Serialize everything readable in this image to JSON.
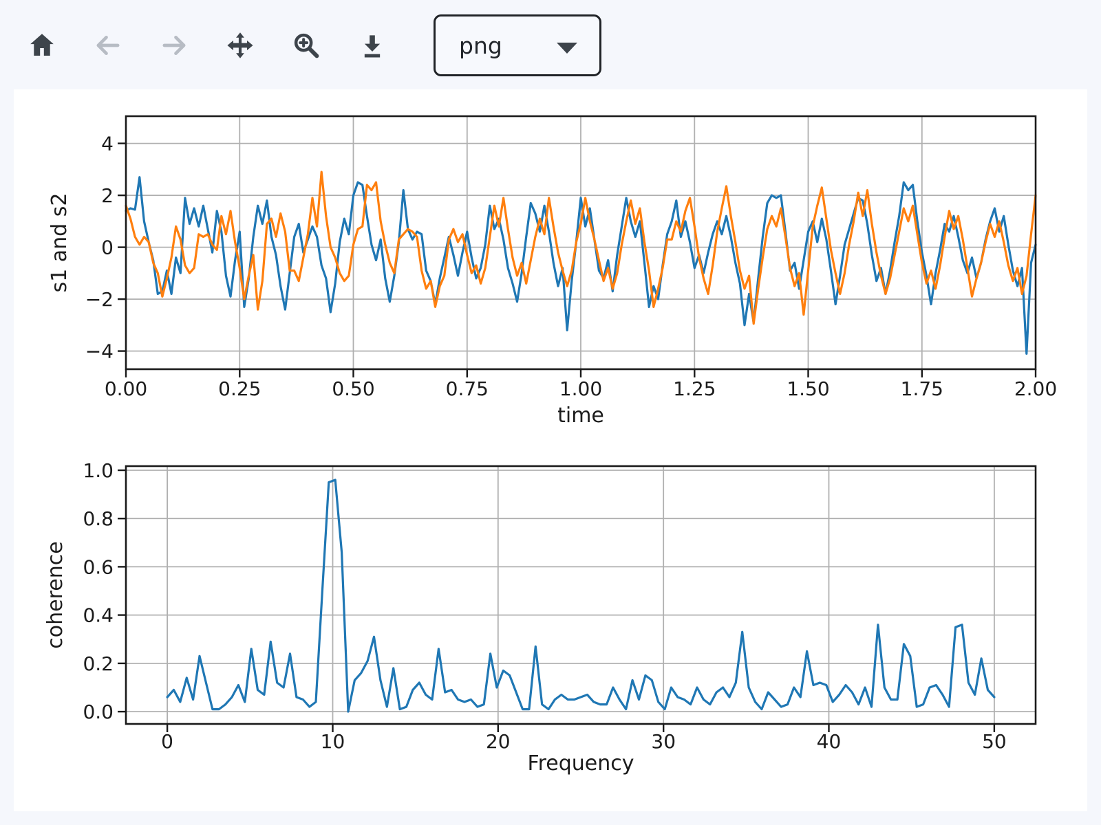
{
  "toolbar": {
    "buttons": [
      {
        "icon": "home-icon",
        "enabled": true
      },
      {
        "icon": "arrow-left-icon",
        "enabled": false
      },
      {
        "icon": "arrow-right-icon",
        "enabled": false
      },
      {
        "icon": "pan-arrows-icon",
        "enabled": true
      },
      {
        "icon": "zoom-in-icon",
        "enabled": true
      },
      {
        "icon": "download-icon",
        "enabled": true
      }
    ],
    "format_select": {
      "value": "png"
    }
  },
  "colors": {
    "page_background": "#f5f7fc",
    "figure_background": "#ffffff",
    "series_blue": "#1f77b4",
    "series_orange": "#ff7f0e",
    "grid": "#b0b0b0",
    "icon_enabled": "#3d444b",
    "icon_disabled": "#b7bcc4"
  },
  "chart_data": [
    {
      "type": "line",
      "xlabel": "time",
      "ylabel": "s1 and s2",
      "grid": true,
      "legend": null,
      "xlim": [
        0,
        2
      ],
      "ylim": [
        -4.7,
        5.05
      ],
      "xticks": {
        "values": [
          0,
          0.25,
          0.5,
          0.75,
          1.0,
          1.25,
          1.5,
          1.75,
          2.0
        ],
        "labels": [
          "0.00",
          "0.25",
          "0.50",
          "0.75",
          "1.00",
          "1.25",
          "1.50",
          "1.75",
          "2.00"
        ]
      },
      "yticks": {
        "values": [
          -4,
          -2,
          0,
          2,
          4
        ],
        "labels": [
          "−4",
          "−2",
          "0",
          "2",
          "4"
        ]
      },
      "x": {
        "start": 0,
        "step": 0.01,
        "n": 201
      },
      "series": [
        {
          "name": "s1",
          "color": "#1f77b4",
          "values": [
            1.4,
            1.5,
            1.45,
            2.7,
            1.0,
            0.2,
            -0.5,
            -1.8,
            -1.7,
            -0.9,
            -1.8,
            -0.4,
            -1.0,
            1.9,
            0.9,
            1.5,
            0.8,
            1.6,
            0.7,
            -0.2,
            1.4,
            0.6,
            -1.1,
            -1.9,
            -0.5,
            0.6,
            -2.3,
            -1.2,
            0.4,
            1.6,
            0.9,
            1.8,
            0.4,
            -0.3,
            -1.5,
            -2.4,
            -1.0,
            0.4,
            0.9,
            -0.2,
            0.3,
            0.8,
            0.4,
            -0.7,
            -1.2,
            -2.5,
            -1.4,
            0.2,
            1.1,
            0.5,
            2.0,
            2.5,
            2.4,
            1.2,
            0.1,
            -0.5,
            0.3,
            -1.2,
            -2.1,
            -1.1,
            0.2,
            2.2,
            0.7,
            0.3,
            0.6,
            0.5,
            -0.9,
            -1.3,
            -2.2,
            -1.2,
            -0.4,
            0.4,
            -0.3,
            -1.1,
            -0.2,
            0.6,
            -0.4,
            -1.2,
            -0.8,
            0.1,
            1.6,
            0.7,
            1.1,
            0.3,
            -0.8,
            -1.4,
            -2.1,
            -1.0,
            0.4,
            1.7,
            1.3,
            0.6,
            1.6,
            0.6,
            -0.6,
            -1.5,
            -0.8,
            -3.2,
            -1.3,
            0.2,
            1.9,
            0.8,
            1.5,
            0.3,
            -0.9,
            -1.2,
            -0.5,
            -1.7,
            -0.3,
            0.8,
            1.9,
            1.0,
            0.4,
            1.0,
            -0.6,
            -2.3,
            -1.5,
            -2.0,
            -0.7,
            0.5,
            1.0,
            1.8,
            0.4,
            1.0,
            0.2,
            -0.8,
            -0.3,
            -1.0,
            -0.2,
            0.5,
            1.0,
            0.5,
            1.2,
            0.4,
            -0.6,
            -1.4,
            -3.0,
            -1.8,
            -2.9,
            -1.2,
            0.4,
            1.7,
            2.0,
            1.9,
            2.0,
            0.6,
            -0.9,
            -0.6,
            -1.6,
            -0.5,
            0.6,
            1.0,
            0.2,
            1.1,
            0.3,
            -0.9,
            -2.2,
            -1.1,
            0.1,
            0.7,
            1.3,
            1.9,
            1.8,
            0.9,
            -0.3,
            -1.3,
            -0.8,
            -1.8,
            -0.9,
            0.2,
            1.2,
            2.5,
            2.2,
            2.4,
            1.0,
            -0.2,
            -1.1,
            -2.2,
            -1.0,
            -0.1,
            0.9,
            0.6,
            1.2,
            0.4,
            -0.5,
            -1.0,
            -0.4,
            -1.2,
            -0.6,
            0.3,
            1.0,
            1.5,
            0.6,
            1.2,
            0.1,
            -0.9,
            -1.5,
            -0.8,
            -4.1,
            -0.6,
            0.1
          ]
        },
        {
          "name": "s2",
          "color": "#ff7f0e",
          "values": [
            1.6,
            1.1,
            0.4,
            0.1,
            0.4,
            0.2,
            -0.6,
            -1.0,
            -1.9,
            -1.2,
            -0.4,
            0.8,
            0.3,
            -0.7,
            -1.0,
            -0.8,
            0.5,
            0.4,
            0.5,
            0.1,
            -0.1,
            1.2,
            0.5,
            1.4,
            0.2,
            -0.8,
            -2.0,
            -1.1,
            -0.3,
            -2.4,
            -1.3,
            0.9,
            1.1,
            0.4,
            1.3,
            0.6,
            -0.9,
            -0.9,
            -1.3,
            -0.4,
            0.5,
            1.9,
            0.8,
            2.9,
            1.2,
            0.0,
            -0.4,
            -1.0,
            -1.3,
            -1.1,
            0.1,
            0.7,
            0.8,
            2.4,
            2.2,
            2.5,
            1.0,
            0.1,
            -0.6,
            -1.0,
            0.3,
            0.5,
            0.7,
            0.6,
            0.4,
            -0.9,
            -1.6,
            -1.3,
            -2.3,
            -1.5,
            -1.1,
            0.3,
            0.7,
            0.2,
            0.5,
            -0.3,
            -1.0,
            -0.7,
            -1.4,
            -0.8,
            0.4,
            1.6,
            0.8,
            1.9,
            0.7,
            -0.4,
            -1.1,
            -0.6,
            -1.4,
            -0.5,
            0.4,
            1.1,
            0.5,
            1.9,
            0.8,
            -0.2,
            -0.9,
            -1.5,
            -0.9,
            0.2,
            0.9,
            1.9,
            1.0,
            0.3,
            -0.5,
            -1.3,
            -0.8,
            -1.6,
            -1.0,
            0.1,
            1.0,
            1.8,
            0.9,
            1.5,
            0.2,
            -0.9,
            -2.3,
            -1.6,
            -0.8,
            0.3,
            0.3,
            1.0,
            0.6,
            1.4,
            1.9,
            0.8,
            -0.4,
            -1.2,
            -1.8,
            -0.7,
            0.6,
            1.5,
            2.35,
            1.2,
            0.2,
            -0.9,
            -1.6,
            -1.1,
            -2.95,
            -1.6,
            -0.4,
            0.7,
            1.2,
            0.8,
            1.5,
            0.4,
            -0.8,
            -1.5,
            -1.0,
            -2.6,
            -0.9,
            0.8,
            1.6,
            2.3,
            1.1,
            -0.1,
            -1.0,
            -1.8,
            -1.0,
            0.1,
            1.0,
            2.1,
            1.2,
            2.2,
            0.9,
            -0.2,
            -1.1,
            -1.8,
            -1.2,
            -0.3,
            0.6,
            1.5,
            1.0,
            1.6,
            0.5,
            -0.6,
            -1.4,
            -0.9,
            -1.6,
            -0.7,
            0.4,
            1.4,
            0.7,
            1.2,
            0.3,
            -0.8,
            -1.9,
            -1.2,
            -0.6,
            0.2,
            0.9,
            0.4,
            1.0,
            0.2,
            -0.7,
            -1.3,
            -0.8,
            -1.8,
            -1.1,
            0.5,
            2.0
          ]
        }
      ]
    },
    {
      "type": "line",
      "xlabel": "Frequency",
      "ylabel": "coherence",
      "grid": true,
      "legend": null,
      "xlim": [
        -2.5,
        52.5
      ],
      "ylim": [
        -0.051,
        1.017
      ],
      "xticks": {
        "values": [
          0,
          10,
          20,
          30,
          40,
          50
        ],
        "labels": [
          "0",
          "10",
          "20",
          "30",
          "40",
          "50"
        ]
      },
      "yticks": {
        "values": [
          0.0,
          0.2,
          0.4,
          0.6,
          0.8,
          1.0
        ],
        "labels": [
          "0.0",
          "0.2",
          "0.4",
          "0.6",
          "0.8",
          "1.0"
        ]
      },
      "x": {
        "start": 0,
        "step": 0.390625,
        "n": 129
      },
      "series": [
        {
          "name": "coherence",
          "color": "#1f77b4",
          "values": [
            0.06,
            0.09,
            0.04,
            0.14,
            0.05,
            0.23,
            0.12,
            0.01,
            0.01,
            0.03,
            0.06,
            0.11,
            0.04,
            0.26,
            0.09,
            0.07,
            0.29,
            0.12,
            0.1,
            0.24,
            0.06,
            0.05,
            0.02,
            0.04,
            0.5,
            0.95,
            0.96,
            0.66,
            0.0,
            0.13,
            0.16,
            0.21,
            0.31,
            0.13,
            0.02,
            0.18,
            0.01,
            0.02,
            0.09,
            0.12,
            0.07,
            0.05,
            0.26,
            0.08,
            0.09,
            0.05,
            0.04,
            0.05,
            0.02,
            0.03,
            0.24,
            0.1,
            0.17,
            0.15,
            0.08,
            0.01,
            0.01,
            0.27,
            0.03,
            0.01,
            0.05,
            0.07,
            0.05,
            0.05,
            0.06,
            0.07,
            0.04,
            0.03,
            0.03,
            0.1,
            0.05,
            0.01,
            0.13,
            0.05,
            0.15,
            0.13,
            0.04,
            0.01,
            0.1,
            0.06,
            0.05,
            0.03,
            0.1,
            0.05,
            0.03,
            0.08,
            0.1,
            0.06,
            0.12,
            0.33,
            0.1,
            0.04,
            0.01,
            0.08,
            0.05,
            0.02,
            0.03,
            0.1,
            0.06,
            0.25,
            0.11,
            0.12,
            0.11,
            0.04,
            0.07,
            0.11,
            0.08,
            0.03,
            0.1,
            0.02,
            0.36,
            0.1,
            0.05,
            0.05,
            0.28,
            0.23,
            0.02,
            0.03,
            0.1,
            0.11,
            0.07,
            0.02,
            0.35,
            0.36,
            0.12,
            0.07,
            0.22,
            0.09,
            0.06
          ]
        }
      ]
    }
  ]
}
